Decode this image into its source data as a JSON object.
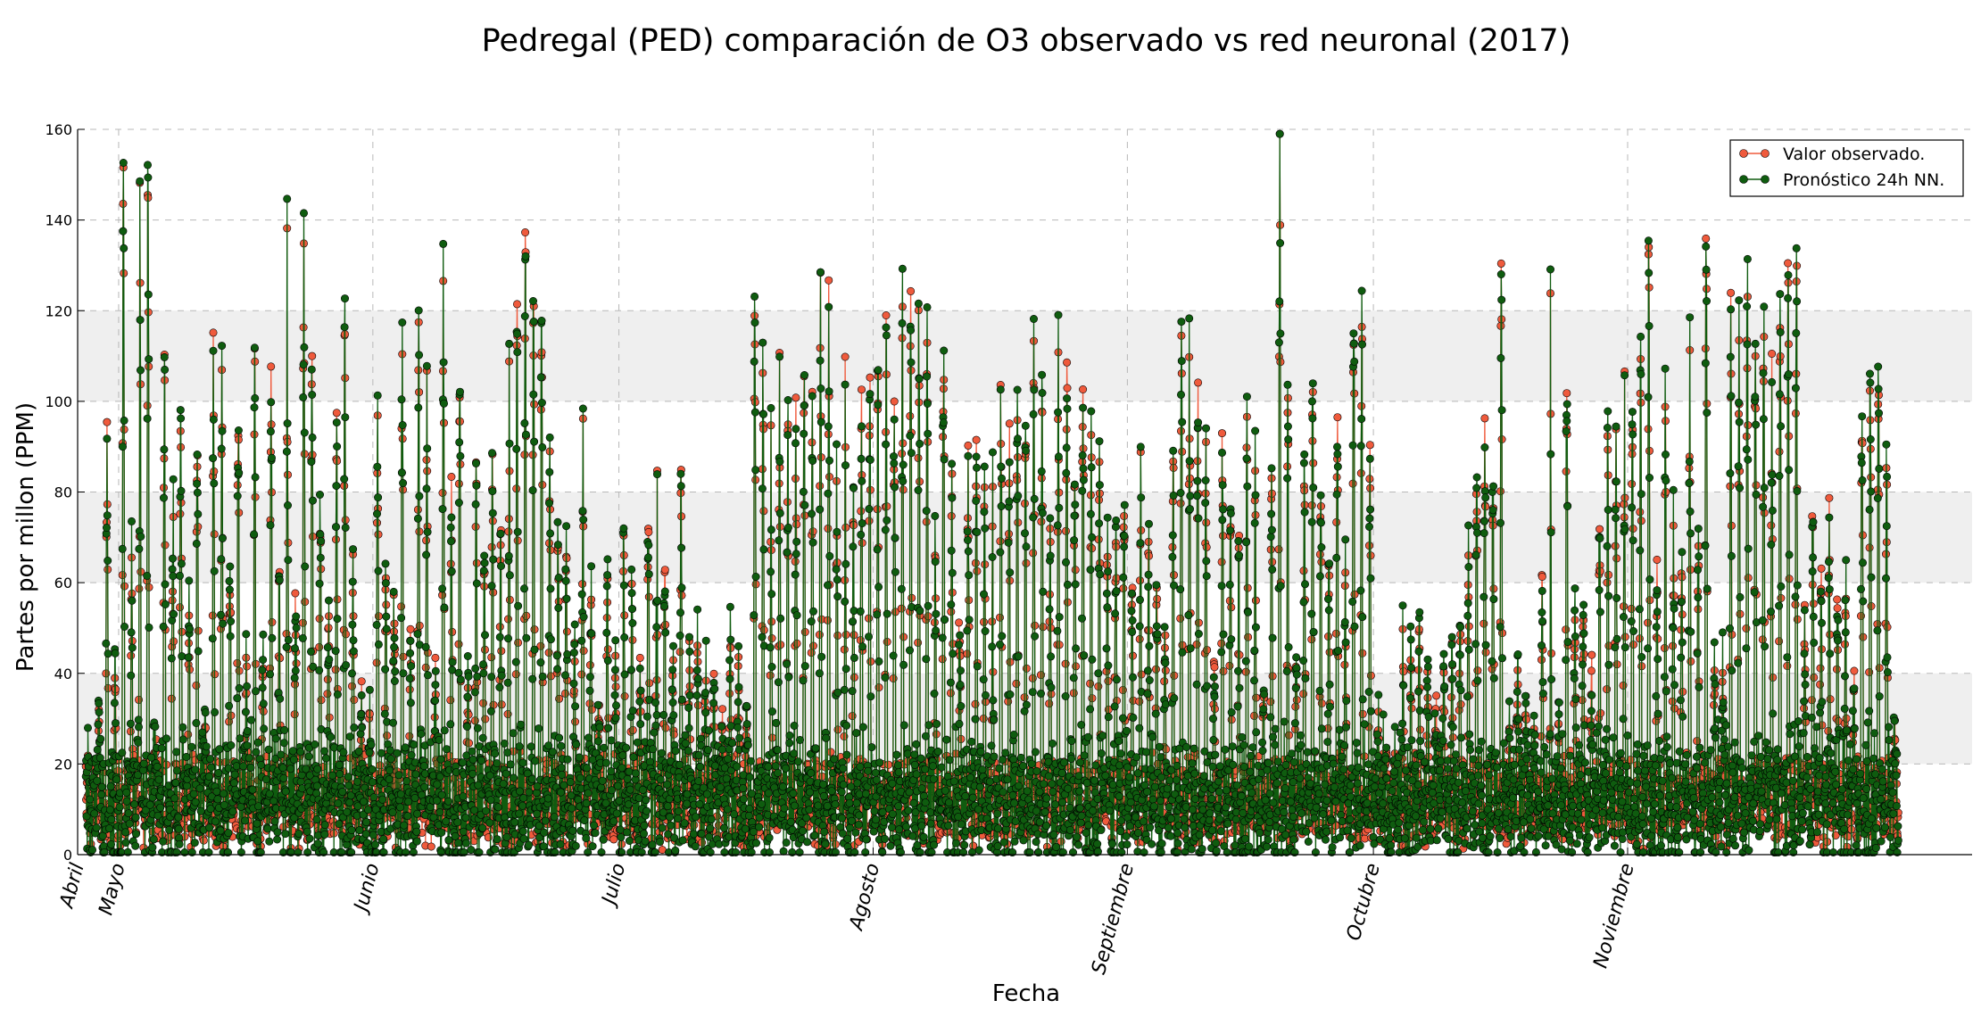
{
  "chart_data": {
    "type": "line",
    "title": "Pedregal (PED) comparación de O3 observado vs red neuronal (2017)",
    "xlabel": "Fecha",
    "ylabel": "Partes por millon (PPM)",
    "ylim": [
      0,
      160
    ],
    "yticks": [
      0,
      20,
      40,
      60,
      80,
      100,
      120,
      140,
      160
    ],
    "shaded_bands": [
      [
        20,
        40
      ],
      [
        60,
        80
      ],
      [
        100,
        120
      ]
    ],
    "grid": true,
    "legend_position": "top-right",
    "x_axis_type": "date",
    "x_start": "2017-04-27",
    "x_end": "2017-12-04",
    "xlim_start": "2017-04-26",
    "xlim_end": "2017-12-13",
    "month_ticks": [
      {
        "date": "2017-04-26",
        "label": "Abril"
      },
      {
        "date": "2017-05-01",
        "label": "Mayo"
      },
      {
        "date": "2017-06-01",
        "label": "Junio"
      },
      {
        "date": "2017-07-01",
        "label": "Julio"
      },
      {
        "date": "2017-08-01",
        "label": "Agosto"
      },
      {
        "date": "2017-09-01",
        "label": "Septiembre"
      },
      {
        "date": "2017-10-01",
        "label": "Octubre"
      },
      {
        "date": "2017-11-01",
        "label": "Noviembre"
      }
    ],
    "daily_peak_values": [
      [
        5,
        30,
        26,
        88,
        40,
        142,
        60,
        72,
        133,
        140,
        24,
        100,
        58,
        114,
        92,
        50,
        95,
        30,
        122,
        90,
        98,
        62,
        104,
        40,
        24,
        100,
        40,
        110,
        60,
        133,
        96,
        55,
        134,
        104,
        80,
        56,
        54,
        90,
        120,
        62,
        28,
        40,
        30,
        92,
        60,
        54,
        112,
        100,
        46,
        108,
        96,
        30,
        44,
        120,
        75,
        100,
        35,
        50,
        90,
        64,
        86,
        68,
        70
      ],
      [
        125,
        108,
        130,
        115,
        122,
        100,
        82,
        65,
        68,
        40,
        70,
        92,
        60,
        30,
        60,
        40,
        30,
        66,
        62,
        40,
        78,
        50,
        120,
        60,
        40,
        78,
        44,
        54,
        50,
        35,
        36,
        30,
        48,
        38,
        40,
        30,
        125,
        107,
        98,
        60,
        98,
        94,
        90,
        100,
        102,
        98,
        116,
        112,
        76,
        60,
        100,
        70,
        98,
        104,
        110,
        80,
        108,
        98,
        110,
        126,
        124,
        112,
        116
      ],
      [
        68,
        111,
        80,
        103,
        50,
        85,
        80,
        72,
        75,
        45,
        103,
        90,
        100,
        96,
        80,
        110,
        100,
        65,
        100,
        96,
        124,
        84,
        102,
        85,
        92,
        76,
        60,
        73,
        86,
        60,
        72,
        90,
        70,
        58,
        48,
        84,
        124,
        112,
        104,
        104,
        85,
        40,
        42,
        90,
        75,
        68,
        91,
        60,
        78,
        38,
        80,
        150,
        102,
        56,
        40,
        84,
        105,
        80,
        60,
        60,
        94,
        55,
        121
      ],
      [
        110,
        55,
        84,
        30,
        20,
        20,
        26,
        52,
        40,
        48,
        38,
        28,
        44,
        40,
        42,
        50,
        62,
        78,
        84,
        94,
        85,
        119,
        26,
        45,
        37,
        35,
        30,
        60,
        34,
        114,
        26,
        100,
        50,
        57,
        50,
        40,
        70,
        90,
        94,
        76,
        102,
        100,
        100,
        126,
        60,
        56,
        96,
        68,
        64,
        100,
        58,
        80,
        136,
        40,
        40,
        110,
        108,
        120,
        118,
        120
      ],
      [
        112,
        100,
        88,
        122,
        126,
        122,
        50,
        94,
        72,
        60,
        71,
        55,
        58,
        42,
        40,
        100,
        98,
        100,
        100,
        80,
        30,
        26
      ]
    ],
    "series": [
      {
        "name": "Valor observado.",
        "color": "#ef5a3c",
        "marker": "circle"
      },
      {
        "name": "Pronóstico 24h NN.",
        "color": "#0f5c0f",
        "marker": "circle"
      }
    ]
  }
}
